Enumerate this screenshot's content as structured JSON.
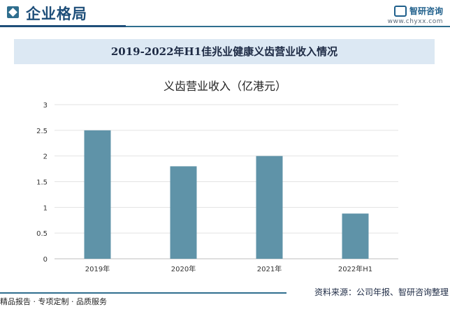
{
  "header": {
    "title": "企业格局",
    "logo_name": "智研咨询",
    "logo_url": "www.chyxx.com"
  },
  "banner": {
    "title": "2019-2022年H1佳兆业健康义齿营业收入情况"
  },
  "footer": {
    "left": "精品报告 · 专项定制 · 品质服务",
    "source": "资料来源：公司年报、智研咨询整理"
  },
  "colors": {
    "bar": "#5f93a8",
    "banner_bg": "#dce8f3",
    "accent": "#2f6e8e"
  },
  "chart_data": {
    "type": "bar",
    "title": "义齿营业收入（亿港元）",
    "categories": [
      "2019年",
      "2020年",
      "2021年",
      "2022年H1"
    ],
    "values": [
      2.5,
      1.8,
      2.0,
      0.88
    ],
    "ylim": [
      0,
      3
    ],
    "yticks": [
      0,
      0.5,
      1,
      1.5,
      2,
      2.5,
      3
    ],
    "ytick_labels": [
      "0",
      "0.5",
      "1",
      "1.5",
      "2",
      "2.5",
      "3"
    ],
    "grid": true,
    "legend": "none"
  }
}
